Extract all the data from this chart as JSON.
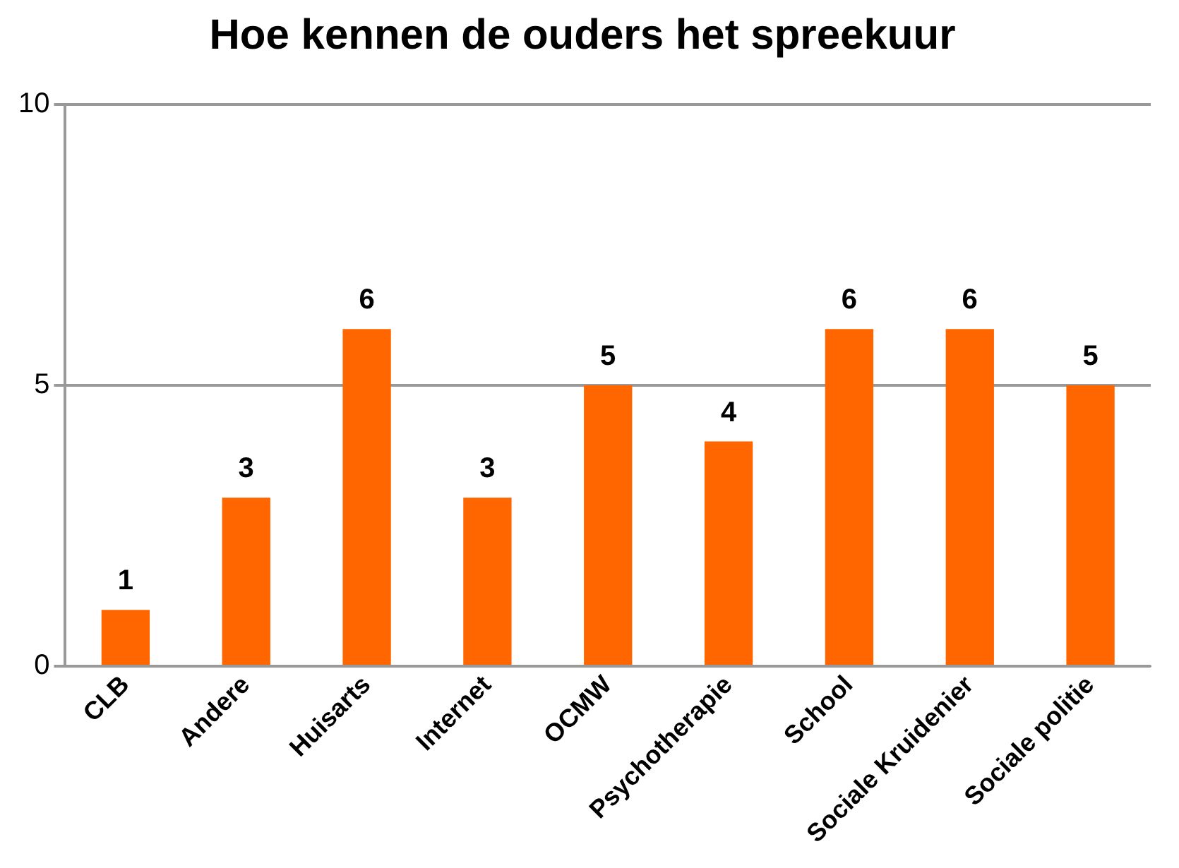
{
  "chart_data": {
    "type": "bar",
    "title": "Hoe kennen de ouders het spreekuur",
    "categories": [
      "CLB",
      "Andere",
      "Huisarts",
      "Internet",
      "OCMW",
      "Psychotherapie",
      "School",
      "Sociale Kruidenier",
      "Sociale politie"
    ],
    "values": [
      1,
      3,
      6,
      3,
      5,
      4,
      6,
      6,
      5
    ],
    "color": "#ff6600",
    "ylim": [
      0,
      10
    ],
    "yticks": [
      0,
      5,
      10
    ],
    "grid": "y",
    "data_labels": true
  }
}
